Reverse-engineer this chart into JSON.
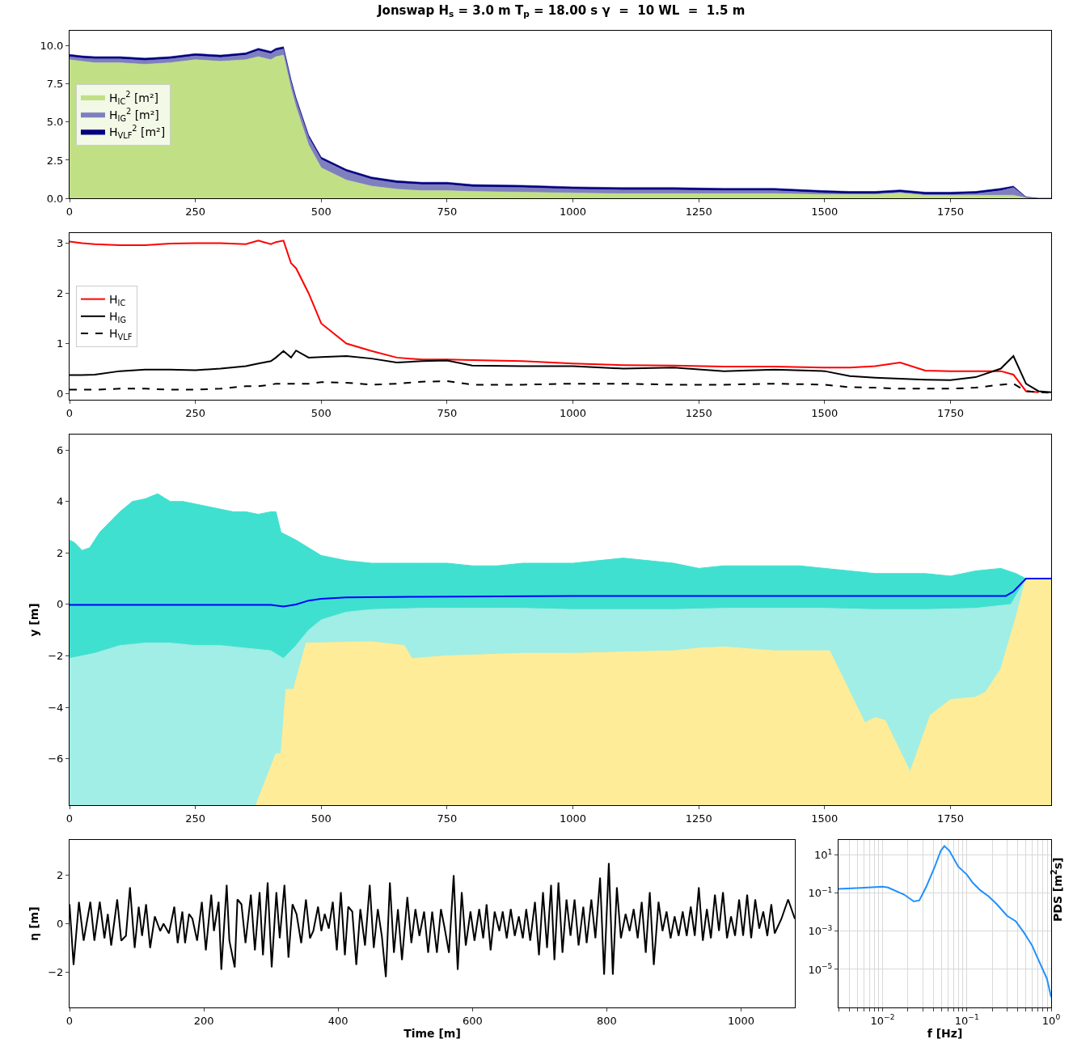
{
  "chart_data": [
    {
      "type": "area",
      "title": "Jonswap H$_{s}$ = 3.0 m T$_{p}$ = 18.00 s γ  =  10 WL  =  1.5 m",
      "stacked": true,
      "legend": "left",
      "x": [
        0,
        25,
        50,
        100,
        150,
        200,
        250,
        300,
        350,
        375,
        400,
        410,
        425,
        440,
        450,
        475,
        500,
        550,
        600,
        650,
        700,
        750,
        800,
        900,
        1000,
        1100,
        1200,
        1300,
        1400,
        1500,
        1550,
        1600,
        1650,
        1700,
        1750,
        1800,
        1850,
        1875,
        1900,
        1925,
        1950
      ],
      "series": [
        {
          "name": "H$_{IC}$$^{2}$ [m²]",
          "color": "#c1e086",
          "values": [
            9.1,
            9.0,
            8.9,
            8.9,
            8.8,
            8.9,
            9.1,
            9.0,
            9.1,
            9.3,
            9.1,
            9.3,
            9.4,
            7.2,
            6.0,
            3.5,
            2.0,
            1.2,
            0.8,
            0.6,
            0.5,
            0.5,
            0.45,
            0.4,
            0.35,
            0.3,
            0.3,
            0.3,
            0.3,
            0.25,
            0.25,
            0.25,
            0.35,
            0.2,
            0.2,
            0.2,
            0.2,
            0.2,
            0.02,
            0,
            0
          ]
        },
        {
          "name": "H$_{IG}$$^{2}$ [m²]",
          "color": "#7f7fbf",
          "values": [
            0.2,
            0.2,
            0.25,
            0.25,
            0.25,
            0.25,
            0.25,
            0.25,
            0.3,
            0.4,
            0.4,
            0.4,
            0.4,
            0.45,
            0.45,
            0.5,
            0.55,
            0.55,
            0.45,
            0.4,
            0.4,
            0.4,
            0.3,
            0.3,
            0.25,
            0.25,
            0.25,
            0.2,
            0.2,
            0.1,
            0.05,
            0.05,
            0.05,
            0.05,
            0.05,
            0.1,
            0.3,
            0.5,
            0.05,
            0,
            0
          ]
        },
        {
          "name": "H$_{VLF}$$^{2}$ [m²]",
          "color": "#000080",
          "values": [
            0.15,
            0.15,
            0.15,
            0.15,
            0.15,
            0.15,
            0.15,
            0.15,
            0.15,
            0.15,
            0.15,
            0.15,
            0.15,
            0.15,
            0.15,
            0.15,
            0.15,
            0.15,
            0.15,
            0.15,
            0.15,
            0.15,
            0.15,
            0.15,
            0.15,
            0.15,
            0.15,
            0.15,
            0.15,
            0.15,
            0.15,
            0.15,
            0.15,
            0.15,
            0.15,
            0.15,
            0.15,
            0.1,
            0.02,
            0,
            0
          ]
        }
      ],
      "xlim": [
        0,
        1950
      ],
      "xticks": [
        0,
        250,
        500,
        750,
        1000,
        1250,
        1500,
        1750
      ],
      "ylim": [
        0,
        11
      ],
      "yticks": [
        {
          "value": 0,
          "label": "0.0"
        },
        {
          "value": 2.5,
          "label": "2.5"
        },
        {
          "value": 5,
          "label": "5.0"
        },
        {
          "value": 7.5,
          "label": "7.5"
        },
        {
          "value": 10,
          "label": "10.0"
        }
      ]
    },
    {
      "type": "line",
      "legend": "left",
      "x": [
        0,
        25,
        50,
        100,
        150,
        200,
        250,
        300,
        350,
        375,
        400,
        410,
        425,
        440,
        450,
        475,
        500,
        550,
        600,
        650,
        700,
        750,
        800,
        900,
        1000,
        1100,
        1200,
        1300,
        1400,
        1500,
        1550,
        1600,
        1650,
        1700,
        1750,
        1800,
        1850,
        1875,
        1900,
        1925,
        1950
      ],
      "series": [
        {
          "name": "H$_{IC}$",
          "color": "#ff0000",
          "line_style": "solid",
          "values": [
            3.03,
            3.0,
            2.98,
            2.96,
            2.96,
            2.99,
            3.0,
            3.0,
            2.98,
            3.05,
            2.98,
            3.02,
            3.05,
            2.6,
            2.5,
            2.0,
            1.4,
            1.0,
            0.85,
            0.72,
            0.68,
            0.68,
            0.67,
            0.65,
            0.6,
            0.57,
            0.56,
            0.54,
            0.54,
            0.52,
            0.52,
            0.55,
            0.62,
            0.46,
            0.45,
            0.45,
            0.45,
            0.38,
            0.05,
            0.03,
            null
          ]
        },
        {
          "name": "H$_{IG}$",
          "color": "#000000",
          "line_style": "solid",
          "values": [
            0.37,
            0.37,
            0.38,
            0.45,
            0.48,
            0.48,
            0.47,
            0.5,
            0.55,
            0.6,
            0.65,
            0.72,
            0.85,
            0.72,
            0.86,
            0.72,
            0.73,
            0.75,
            0.7,
            0.62,
            0.65,
            0.66,
            0.56,
            0.55,
            0.55,
            0.5,
            0.52,
            0.45,
            0.48,
            0.45,
            0.35,
            0.32,
            0.3,
            0.28,
            0.27,
            0.33,
            0.5,
            0.75,
            0.2,
            0.05,
            0.03
          ]
        },
        {
          "name": "H$_{VLF}$",
          "color": "#000000",
          "line_style": "dashed",
          "values": [
            0.08,
            0.08,
            0.08,
            0.1,
            0.1,
            0.08,
            0.08,
            0.1,
            0.15,
            0.15,
            0.18,
            0.2,
            0.2,
            0.2,
            0.2,
            0.2,
            0.23,
            0.22,
            0.18,
            0.2,
            0.24,
            0.25,
            0.18,
            0.18,
            0.2,
            0.2,
            0.18,
            0.18,
            0.2,
            0.18,
            0.13,
            0.12,
            0.1,
            0.1,
            0.1,
            0.12,
            0.18,
            0.2,
            0.05,
            0.03,
            0.02
          ]
        }
      ],
      "xlim": [
        0,
        1950
      ],
      "xticks": [
        0,
        250,
        500,
        750,
        1000,
        1250,
        1500,
        1750
      ],
      "ylim": [
        -0.12,
        3.2
      ],
      "yticks": [
        0,
        1,
        2,
        3
      ]
    },
    {
      "type": "area",
      "ylabel": "y [m]",
      "series": [
        {
          "type": "area",
          "color": "#40e0d0",
          "x": [
            0,
            10,
            25,
            40,
            60,
            80,
            100,
            125,
            150,
            175,
            200,
            225,
            250,
            275,
            300,
            325,
            350,
            375,
            400,
            410,
            420,
            450,
            500,
            550,
            600,
            650,
            700,
            750,
            800,
            850,
            900,
            950,
            1000,
            1050,
            1100,
            1150,
            1200,
            1250,
            1300,
            1350,
            1400,
            1450,
            1500,
            1550,
            1600,
            1650,
            1700,
            1750,
            1800,
            1850,
            1880,
            1900,
            1950
          ],
          "values": [
            2.5,
            2.4,
            2.1,
            2.2,
            2.8,
            3.2,
            3.6,
            4.0,
            4.1,
            4.3,
            4.0,
            4.0,
            3.9,
            3.8,
            3.7,
            3.6,
            3.6,
            3.5,
            3.6,
            3.6,
            2.8,
            2.5,
            1.9,
            1.7,
            1.6,
            1.6,
            1.6,
            1.6,
            1.5,
            1.5,
            1.6,
            1.6,
            1.6,
            1.7,
            1.8,
            1.7,
            1.6,
            1.4,
            1.5,
            1.5,
            1.5,
            1.5,
            1.4,
            1.3,
            1.2,
            1.2,
            1.2,
            1.1,
            1.3,
            1.4,
            1.2,
            1.0,
            1.0
          ]
        },
        {
          "type": "area",
          "color": "#a0eee6",
          "x": [
            0,
            50,
            100,
            150,
            200,
            250,
            300,
            350,
            400,
            425,
            450,
            475,
            500,
            550,
            600,
            700,
            800,
            900,
            1000,
            1100,
            1200,
            1300,
            1400,
            1500,
            1600,
            1700,
            1800,
            1870,
            1900,
            1950
          ],
          "values": [
            -2.1,
            -1.9,
            -1.6,
            -1.5,
            -1.5,
            -1.6,
            -1.6,
            -1.7,
            -1.8,
            -2.1,
            -1.6,
            -1.0,
            -0.6,
            -0.3,
            -0.2,
            -0.15,
            -0.15,
            -0.15,
            -0.2,
            -0.2,
            -0.2,
            -0.15,
            -0.15,
            -0.15,
            -0.2,
            -0.2,
            -0.15,
            0.0,
            1.0,
            1.0
          ]
        },
        {
          "type": "area",
          "color": "#feec98",
          "x": [
            370,
            410,
            420,
            430,
            445,
            470,
            600,
            665,
            680,
            750,
            900,
            1000,
            1100,
            1200,
            1250,
            1300,
            1400,
            1510,
            1580,
            1600,
            1620,
            1670,
            1710,
            1750,
            1800,
            1820,
            1850,
            1880,
            1900,
            1950
          ],
          "values": [
            -7.8,
            -5.8,
            -5.8,
            -3.3,
            -3.3,
            -1.5,
            -1.45,
            -1.6,
            -2.1,
            -2.0,
            -1.9,
            -1.9,
            -1.85,
            -1.8,
            -1.7,
            -1.65,
            -1.8,
            -1.8,
            -4.6,
            -4.4,
            -4.5,
            -6.5,
            -4.3,
            -3.7,
            -3.6,
            -3.4,
            -2.5,
            -0.5,
            1.0,
            1.0
          ]
        },
        {
          "type": "line",
          "color": "#0000ff",
          "x": [
            0,
            400,
            425,
            450,
            475,
            500,
            550,
            700,
            1000,
            1860,
            1875,
            1900,
            1950
          ],
          "values": [
            -0.02,
            -0.02,
            -0.08,
            0.0,
            0.15,
            0.22,
            0.27,
            0.3,
            0.33,
            0.33,
            0.5,
            1.0,
            1.0
          ]
        }
      ],
      "xlim": [
        0,
        1950
      ],
      "xticks": [
        0,
        250,
        500,
        750,
        1000,
        1250,
        1500,
        1750
      ],
      "ylim": [
        -7.8,
        6.6
      ],
      "yticks": [
        {
          "value": -6,
          "label": "−6"
        },
        {
          "value": -4,
          "label": "−4"
        },
        {
          "value": -2,
          "label": "−2"
        },
        0,
        2,
        4,
        6
      ]
    },
    {
      "type": "line",
      "xlabel": "Time [m]",
      "ylabel": "η [m]",
      "series": [
        {
          "color": "#000000",
          "x": [
            0,
            6,
            14,
            21,
            31,
            37,
            45,
            52,
            57,
            62,
            71,
            77,
            84,
            90,
            97,
            103,
            108,
            114,
            120,
            127,
            135,
            140,
            148,
            156,
            161,
            168,
            172,
            178,
            183,
            190,
            197,
            203,
            211,
            215,
            222,
            226,
            234,
            238,
            246,
            250,
            256,
            262,
            270,
            276,
            283,
            288,
            295,
            301,
            308,
            313,
            320,
            326,
            332,
            338,
            345,
            352,
            358,
            363,
            370,
            375,
            380,
            386,
            392,
            398,
            404,
            410,
            415,
            421,
            427,
            433,
            440,
            447,
            453,
            459,
            465,
            471,
            477,
            483,
            489,
            495,
            503,
            509,
            515,
            521,
            528,
            534,
            540,
            547,
            553,
            558,
            565,
            572,
            578,
            584,
            590,
            597,
            603,
            610,
            616,
            621,
            627,
            633,
            640,
            645,
            651,
            657,
            663,
            669,
            675,
            680,
            686,
            693,
            699,
            705,
            711,
            717,
            722,
            728,
            734,
            740,
            746,
            752,
            758,
            765,
            770,
            777,
            783,
            790,
            796,
            803,
            809,
            815,
            821,
            828,
            834,
            840,
            846,
            852,
            858,
            864,
            870,
            877,
            883,
            889,
            895,
            901,
            907,
            913,
            919,
            925,
            931,
            937,
            943,
            949,
            955,
            961,
            967,
            973,
            979,
            985,
            991,
            997,
            1003,
            1009,
            1015,
            1021,
            1027,
            1033,
            1039,
            1045,
            1050,
            1060,
            1070,
            1080
          ],
          "values": [
            0.8,
            -1.7,
            0.9,
            -0.7,
            0.9,
            -0.7,
            0.9,
            -0.6,
            0.4,
            -0.9,
            1.0,
            -0.7,
            -0.5,
            1.5,
            -1.0,
            0.7,
            -0.5,
            0.8,
            -1.0,
            0.3,
            -0.3,
            0.0,
            -0.4,
            0.7,
            -0.8,
            0.5,
            -0.8,
            0.4,
            0.2,
            -0.7,
            0.9,
            -1.1,
            1.2,
            -0.3,
            0.9,
            -1.9,
            1.6,
            -0.7,
            -1.8,
            1.0,
            0.8,
            -0.8,
            1.2,
            -1.1,
            1.3,
            -1.3,
            1.7,
            -1.8,
            1.3,
            -0.6,
            1.6,
            -1.4,
            0.8,
            0.4,
            -0.8,
            1.0,
            -0.6,
            -0.3,
            0.7,
            -0.3,
            0.4,
            -0.2,
            0.9,
            -1.1,
            1.3,
            -1.3,
            0.7,
            0.5,
            -1.7,
            0.6,
            -0.9,
            1.6,
            -1.0,
            0.6,
            -0.5,
            -2.2,
            1.7,
            -1.2,
            0.6,
            -1.5,
            1.1,
            -0.8,
            0.6,
            -0.5,
            0.5,
            -1.2,
            0.5,
            -1.2,
            0.6,
            -0.1,
            -1.2,
            2.0,
            -1.9,
            1.3,
            -0.9,
            0.5,
            -0.7,
            0.6,
            -0.6,
            0.8,
            -1.1,
            0.5,
            -0.3,
            0.5,
            -0.6,
            0.6,
            -0.5,
            0.3,
            -0.6,
            0.6,
            -0.7,
            0.9,
            -1.3,
            1.3,
            -1.0,
            1.6,
            -1.5,
            1.7,
            -1.2,
            1.0,
            -0.5,
            1.0,
            -0.9,
            0.7,
            -0.8,
            1.0,
            -0.6,
            1.9,
            -2.1,
            2.5,
            -2.1,
            1.5,
            -0.6,
            0.4,
            -0.3,
            0.6,
            -0.6,
            0.9,
            -1.2,
            1.3,
            -1.7,
            0.9,
            -0.3,
            0.5,
            -0.6,
            0.3,
            -0.5,
            0.5,
            -0.5,
            0.7,
            -0.5,
            1.5,
            -0.7,
            0.6,
            -0.6,
            1.2,
            -0.3,
            1.3,
            -0.6,
            0.3,
            -0.5,
            1.0,
            -0.5,
            1.2,
            -0.6,
            1.0,
            -0.2,
            0.5,
            -0.5,
            0.8,
            -0.4,
            0.2,
            1.0,
            0.2
          ]
        }
      ],
      "xlim": [
        0,
        1080
      ],
      "xticks": [
        0,
        200,
        400,
        600,
        800,
        1000
      ],
      "ylim": [
        -3.45,
        3.45
      ],
      "yticks": [
        {
          "value": -2,
          "label": "−2"
        },
        0,
        2
      ]
    },
    {
      "type": "line",
      "xlabel": "f [Hz]",
      "ylabel": "PDS [m$^{2}$s]",
      "log": "xy",
      "grid": true,
      "series": [
        {
          "color": "#1e90ff",
          "x": [
            0.003,
            0.0055,
            0.01,
            0.0116,
            0.018,
            0.0235,
            0.0273,
            0.033,
            0.041,
            0.049,
            0.054,
            0.062,
            0.079,
            0.1,
            0.117,
            0.145,
            0.18,
            0.226,
            0.3,
            0.38,
            0.48,
            0.59,
            0.74,
            0.89,
            1.0
          ],
          "values": [
            0.17,
            0.19,
            0.22,
            0.2,
            0.085,
            0.037,
            0.042,
            0.22,
            2.1,
            17,
            30,
            17,
            2.5,
            0.95,
            0.36,
            0.14,
            0.07,
            0.027,
            0.0065,
            0.0034,
            0.0008,
            0.00019,
            2e-05,
            3.3e-06,
            3.5e-07
          ]
        }
      ],
      "xlim": [
        0.003,
        1
      ],
      "xticks": [
        {
          "value": 0.003,
          "label": null
        },
        {
          "value": 0.004,
          "label": null
        },
        {
          "value": 0.005,
          "label": null
        },
        {
          "value": 0.006,
          "label": null
        },
        {
          "value": 0.007,
          "label": null
        },
        {
          "value": 0.008,
          "label": null
        },
        {
          "value": 0.009,
          "label": null
        },
        {
          "value": 0.01,
          "label": "10$^{−2}$"
        },
        {
          "value": 0.02,
          "label": null
        },
        {
          "value": 0.03,
          "label": null
        },
        {
          "value": 0.04,
          "label": null
        },
        {
          "value": 0.05,
          "label": null
        },
        {
          "value": 0.06,
          "label": null
        },
        {
          "value": 0.07,
          "label": null
        },
        {
          "value": 0.08,
          "label": null
        },
        {
          "value": 0.09,
          "label": null
        },
        {
          "value": 0.1,
          "label": "10$^{−1}$"
        },
        {
          "value": 0.2,
          "label": null
        },
        {
          "value": 0.3,
          "label": null
        },
        {
          "value": 0.4,
          "label": null
        },
        {
          "value": 0.5,
          "label": null
        },
        {
          "value": 0.6,
          "label": null
        },
        {
          "value": 0.7,
          "label": null
        },
        {
          "value": 0.8,
          "label": null
        },
        {
          "value": 0.9,
          "label": null
        },
        {
          "value": 1,
          "label": "10$^{0}$"
        }
      ],
      "ylim": [
        1e-07,
        63
      ],
      "yticks": [
        {
          "value": 1e-05,
          "label": "10$^{−5}$"
        },
        {
          "value": 0.001,
          "label": "10$^{−3}$"
        },
        {
          "value": 0.1,
          "label": "10$^{−1}$"
        },
        {
          "value": 10,
          "label": "10$^{1}$"
        }
      ]
    }
  ]
}
